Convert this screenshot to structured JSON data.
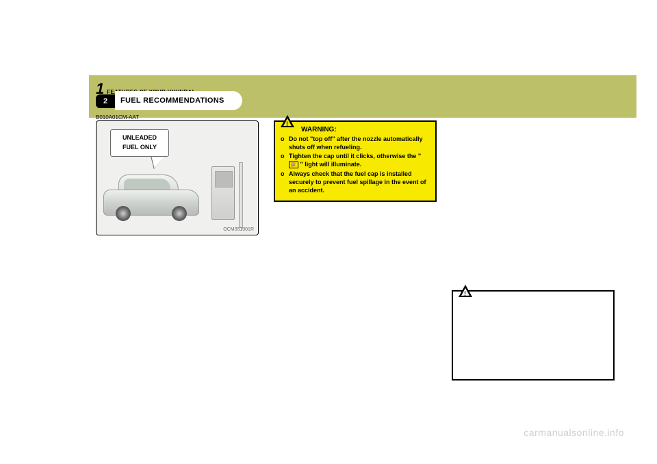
{
  "header": {
    "chapter_number": "1",
    "features_label": "FEATURES OF YOUR HYUNDAI",
    "page_number": "2",
    "tab_title": "FUEL  RECOMMENDATIONS",
    "doc_code": "B010A01CM-AAT"
  },
  "illustration": {
    "bubble_line1": "UNLEADED",
    "bubble_line2": "FUEL  ONLY",
    "image_code": "OCM051001R"
  },
  "warning_box": {
    "title": "WARNING:",
    "items": [
      "Do not \"top off\" after the nozzle automatically shuts off when refueling.",
      "Tighten the cap until it clicks, otherwise the \"      \" light will illuminate.",
      "Always check that the fuel cap is installed securely to prevent fuel spillage in the event of an accident."
    ],
    "background_color": "#f7e900",
    "border_color": "#000000"
  },
  "caution_box": {
    "border_color": "#000000",
    "background_color": "#ffffff"
  },
  "watermark": "carmanualsonline.info",
  "colors": {
    "olive_bar": "#bcc068",
    "page_bg": "#ffffff"
  }
}
